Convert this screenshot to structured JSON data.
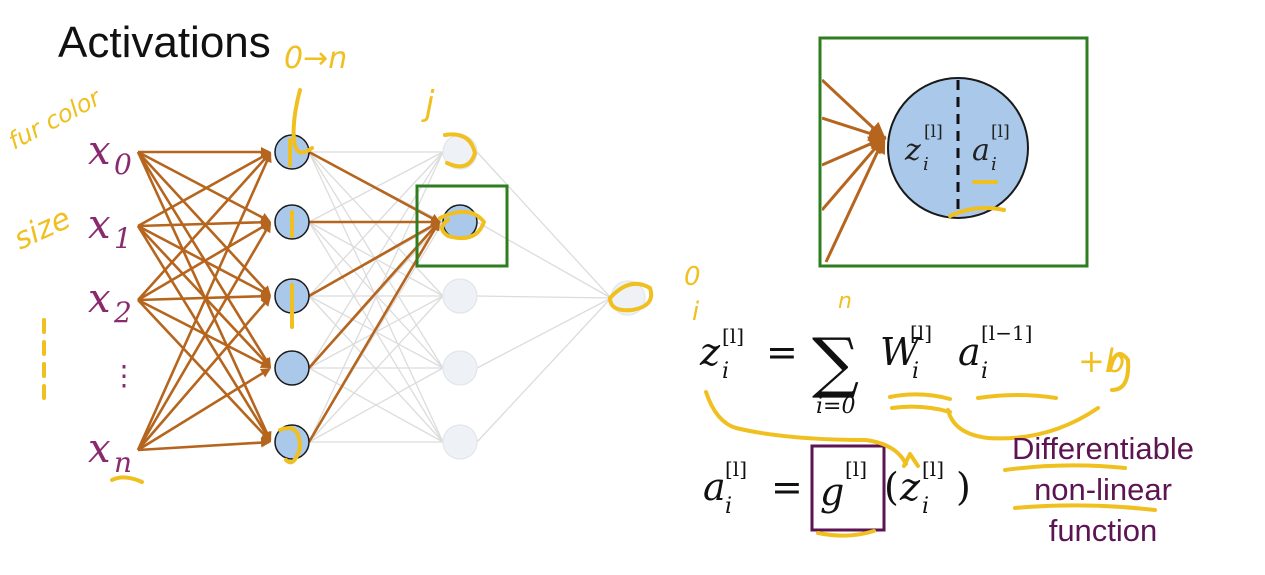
{
  "title": "Activations",
  "inputs": [
    {
      "base": "x",
      "sub": "0"
    },
    {
      "base": "x",
      "sub": "1"
    },
    {
      "base": "x",
      "sub": "2"
    },
    {
      "base": "x",
      "sub": "n"
    }
  ],
  "input_ellipsis": "⋮",
  "zoom": {
    "z_base": "z",
    "z_sub": "i",
    "z_sup": "[l]",
    "a_base": "a",
    "a_sub": "i",
    "a_sup": "[l]"
  },
  "equation1": {
    "lhs_base": "z",
    "lhs_sub": "i",
    "lhs_sup": "[l]",
    "equals": "=",
    "sum_symbol": "∑",
    "sum_lower": "i=0",
    "w_base": "W",
    "w_sub": "i",
    "w_sup": "[l]",
    "a_base": "a",
    "a_sub": "i",
    "a_sup": "[l−1]"
  },
  "equation2": {
    "lhs_base": "a",
    "lhs_sub": "i",
    "lhs_sup": "[l]",
    "equals": "=",
    "g_base": "g",
    "g_sup": "[l]",
    "paren_open": "(",
    "z_base": "z",
    "z_sub": "i",
    "z_sup": "[l]",
    "paren_close": ")"
  },
  "note": {
    "line1": "Differentiable",
    "line2": "non-linear",
    "line3": "function"
  },
  "handwriting": {
    "fur_color": "fur color",
    "size": "size",
    "o_to_n": "0→n",
    "j": "j",
    "n_top": "n",
    "plus_b": "+b",
    "o_small": "0",
    "i_mark": "i"
  },
  "colors": {
    "title": "#111111",
    "input_label": "#8a2a6e",
    "arrow": "#b5651d",
    "faded_line": "#dcdcdc",
    "node_fill": "#a9c8ea",
    "faded_node": "#eef1f6",
    "box_green": "#2e7d1f",
    "g_box": "#5c1452",
    "highlight": "#f0c020",
    "note_text": "#5c1452"
  }
}
